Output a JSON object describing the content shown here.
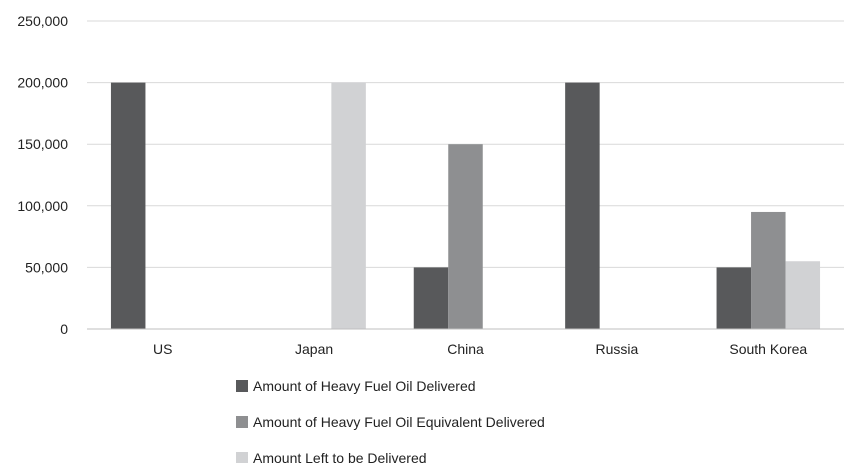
{
  "chart_data": {
    "type": "bar",
    "title": "",
    "xlabel": "",
    "ylabel": "",
    "categories": [
      "US",
      "Japan",
      "China",
      "Russia",
      "South Korea"
    ],
    "ylim": [
      0,
      250000
    ],
    "y_ticks": [
      0,
      50000,
      100000,
      150000,
      200000,
      250000
    ],
    "y_tick_labels": [
      "0",
      "50,000",
      "100,000",
      "150,000",
      "200,000",
      "250,000"
    ],
    "grid": true,
    "legend_position": "bottom",
    "series": [
      {
        "name": "Amount of Heavy Fuel Oil Delivered",
        "color": "#58595b",
        "values": [
          200000,
          0,
          50000,
          200000,
          50000
        ]
      },
      {
        "name": "Amount of Heavy Fuel Oil Equivalent Delivered",
        "color": "#8e8f91",
        "values": [
          0,
          0,
          150000,
          0,
          95000
        ]
      },
      {
        "name": "Amount Left to be Delivered",
        "color": "#d1d2d4",
        "values": [
          0,
          200000,
          0,
          0,
          55000
        ]
      }
    ]
  }
}
